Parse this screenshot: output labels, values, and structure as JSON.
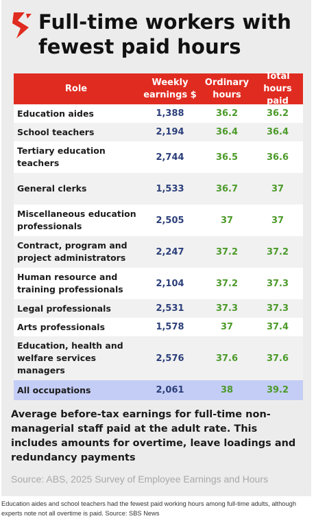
{
  "colors": {
    "header_bg": "#e02b20",
    "earnings_text": "#2c3f7a",
    "hours_text": "#4c9a2a",
    "highlight_row": "#c4cdf5",
    "logo_red": "#e02b20"
  },
  "logo": {
    "icon": "sbs-logo-icon"
  },
  "title": "Full-time workers with fewest paid hours",
  "chart_data": {
    "type": "table",
    "columns": [
      "Role",
      "Weekly earnings $",
      "Ordinary hours",
      "Total hours paid"
    ],
    "rows": [
      {
        "role": "Education aides",
        "earnings": "1,388",
        "ordinary": "36.2",
        "total": "36.2"
      },
      {
        "role": "School teachers",
        "earnings": "2,194",
        "ordinary": "36.4",
        "total": "36.4"
      },
      {
        "role": "Tertiary education teachers",
        "earnings": "2,744",
        "ordinary": "36.5",
        "total": "36.6"
      },
      {
        "role": "General clerks",
        "earnings": "1,533",
        "ordinary": "36.7",
        "total": "37"
      },
      {
        "role": "Miscellaneous education professionals",
        "earnings": "2,505",
        "ordinary": "37",
        "total": "37"
      },
      {
        "role": "Contract, program and project administrators",
        "earnings": "2,247",
        "ordinary": "37.2",
        "total": "37.2"
      },
      {
        "role": "Human resource and training professionals",
        "earnings": "2,104",
        "ordinary": "37.2",
        "total": "37.3"
      },
      {
        "role": "Legal professionals",
        "earnings": "2,531",
        "ordinary": "37.3",
        "total": "37.3"
      },
      {
        "role": "Arts professionals",
        "earnings": "1,578",
        "ordinary": "37",
        "total": "37.4"
      },
      {
        "role": "Education, health and welfare services managers",
        "earnings": "2,576",
        "ordinary": "37.6",
        "total": "37.6"
      },
      {
        "role": "All occupations",
        "earnings": "2,061",
        "ordinary": "38",
        "total": "39.2",
        "highlight": true
      }
    ]
  },
  "footnote": "Average before-tax earnings for full-time non-managerial staff paid at the adult rate. This includes amounts for overtime, leave loadings and redundancy payments",
  "source": "Source: ABS, 2025 Survey of Employee Earnings and Hours",
  "caption": "Education aides and school teachers had the fewest paid working hours among full-time adults, although experts note not all overtime is paid. Source: SBS News"
}
